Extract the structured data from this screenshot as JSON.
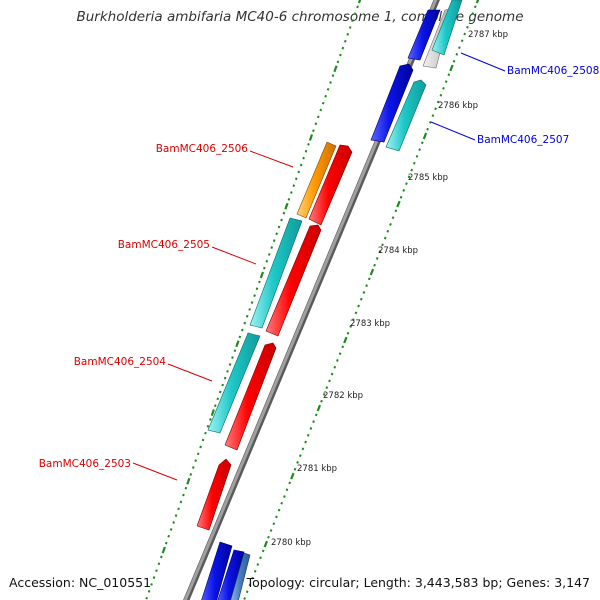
{
  "title": "Burkholderia ambifaria MC40-6 chromosome 1, complete genome",
  "footer": {
    "accession": "Accession: NC_010551",
    "summary": "Topology: circular; Length: 3,443,583 bp; Genes: 3,147"
  },
  "scale": {
    "unit": "kbp",
    "ticks": [
      {
        "label": "2787 kbp"
      },
      {
        "label": "2786 kbp"
      },
      {
        "label": "2785 kbp"
      },
      {
        "label": "2784 kbp"
      },
      {
        "label": "2783 kbp"
      },
      {
        "label": "2782 kbp"
      },
      {
        "label": "2781 kbp"
      },
      {
        "label": "2780 kbp"
      }
    ]
  },
  "gene_labels": {
    "left": [
      {
        "text": "BamMC406_2506",
        "color": "#dd0000"
      },
      {
        "text": "BamMC406_2505",
        "color": "#dd0000"
      },
      {
        "text": "BamMC406_2504",
        "color": "#dd0000"
      },
      {
        "text": "BamMC406_2503",
        "color": "#dd0000"
      }
    ],
    "right": [
      {
        "text": "BamMC406_2508",
        "color": "#0000dd"
      },
      {
        "text": "BamMC406_2507",
        "color": "#0000dd"
      }
    ]
  },
  "colors": {
    "backbone": "#8c8c8c",
    "tick_green": "#1c8a1c",
    "red": "#ff0000",
    "cyan": "#1ec8c8",
    "blue": "#0a14e6",
    "orange": "#ff9a00",
    "gray": "#c8c8c8",
    "steel": "#4a7ec0"
  }
}
